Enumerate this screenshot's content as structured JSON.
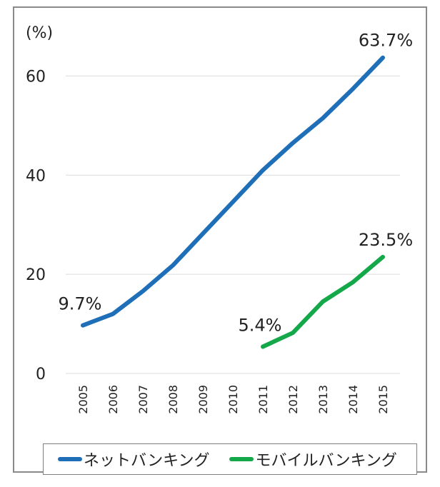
{
  "chart_data": {
    "type": "line",
    "unit_label": "(%)",
    "x": [
      "2005",
      "2006",
      "2007",
      "2008",
      "2009",
      "2010",
      "2011",
      "2012",
      "2013",
      "2014",
      "2015"
    ],
    "ylim": [
      0,
      70
    ],
    "yticks": [
      "0",
      "20",
      "40",
      "60"
    ],
    "ytick_values": [
      0,
      20,
      40,
      60
    ],
    "grid": true,
    "legend_position": "bottom",
    "series": [
      {
        "name": "ネットバンキング",
        "color": "#1f6fb8",
        "values": [
          9.7,
          12.0,
          16.6,
          21.8,
          28.2,
          34.6,
          41.0,
          46.5,
          51.5,
          57.4,
          63.7
        ],
        "data_labels": [
          {
            "index": 0,
            "text": "9.7%"
          },
          {
            "index": 10,
            "text": "63.7%"
          }
        ]
      },
      {
        "name": "モバイルバンキング",
        "color": "#14a84a",
        "values": [
          null,
          null,
          null,
          null,
          null,
          null,
          5.4,
          8.2,
          14.5,
          18.4,
          23.5
        ],
        "data_labels": [
          {
            "index": 6,
            "text": "5.4%"
          },
          {
            "index": 10,
            "text": "23.5%"
          }
        ]
      }
    ]
  }
}
